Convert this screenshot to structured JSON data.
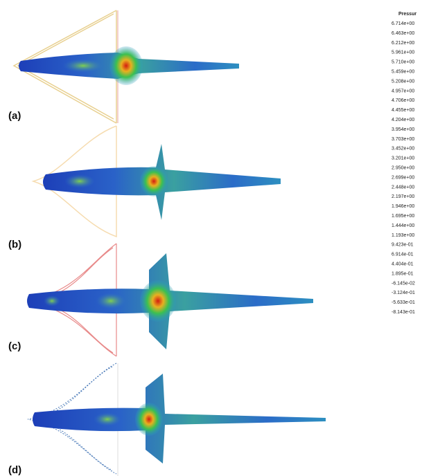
{
  "legend": {
    "title": "Pressur",
    "labels": [
      "6.714e+00",
      "6.463e+00",
      "6.212e+00",
      "5.961e+00",
      "5.710e+00",
      "5.459e+00",
      "5.208e+00",
      "4.957e+00",
      "4.706e+00",
      "4.455e+00",
      "4.204e+00",
      "3.954e+00",
      "3.703e+00",
      "3.452e+00",
      "3.201e+00",
      "2.950e+00",
      "2.699e+00",
      "2.448e+00",
      "2.197e+00",
      "1.946e+00",
      "1.695e+00",
      "1.444e+00",
      "1.193e+00",
      "9.423e-01",
      "6.914e-01",
      "4.404e-01",
      "1.895e-01",
      "-6.145e-02",
      "-3.124e-01",
      "-5.633e-01",
      "-8.143e-01"
    ]
  },
  "panels": [
    {
      "label": "(a)"
    },
    {
      "label": "(b)"
    },
    {
      "label": "(c)"
    },
    {
      "label": "(d)"
    }
  ]
}
